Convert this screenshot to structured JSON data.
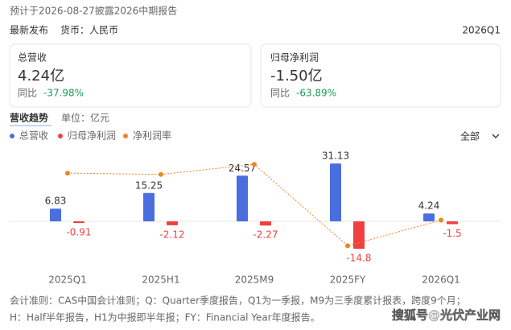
{
  "header": {
    "notice": "预计于2026-08-27披露2026中期报告",
    "status": "最新发布",
    "currency": "货币：人民币",
    "period": "2026Q1"
  },
  "cards": [
    {
      "title": "总营收",
      "value": "4.24亿",
      "change_label": "同比",
      "change": "-37.98%"
    },
    {
      "title": "归母净利润",
      "value": "-1.50亿",
      "change_label": "同比",
      "change": "-63.89%"
    }
  ],
  "section": {
    "title": "营收趋势",
    "unit": "单位：亿元",
    "filter": "全部"
  },
  "chart_data": {
    "type": "bar",
    "categories": [
      "2025Q1",
      "2025H1",
      "2025M9",
      "2025FY",
      "2026Q1"
    ],
    "series": [
      {
        "name": "总营收",
        "color": "#4a6ee0",
        "values": [
          6.83,
          15.25,
          24.57,
          31.13,
          4.24
        ]
      },
      {
        "name": "归母净利润",
        "color": "#f04040",
        "values": [
          -0.91,
          -2.12,
          -2.27,
          -14.8,
          -1.5
        ]
      },
      {
        "name": "净利润率",
        "color": "#f0841e",
        "type": "line",
        "axis": "y2",
        "values": [
          -13.3,
          -13.9,
          -9.2,
          -47.5,
          -35.4
        ]
      }
    ],
    "ylim": [
      -26,
      39
    ],
    "y2lim": [
      -58.7,
      -1.9
    ]
  },
  "footnotes": [
    "会计准则：CAS中国会计准则；Q：Quarter季度报告，Q1为一季报，M9为三季度累计报表，跨度9个月；",
    "H：Half半年报告，H1为中报即半年报；FY：Financial Year年度报告。"
  ],
  "watermark": "搜狐号@光伏产业网"
}
